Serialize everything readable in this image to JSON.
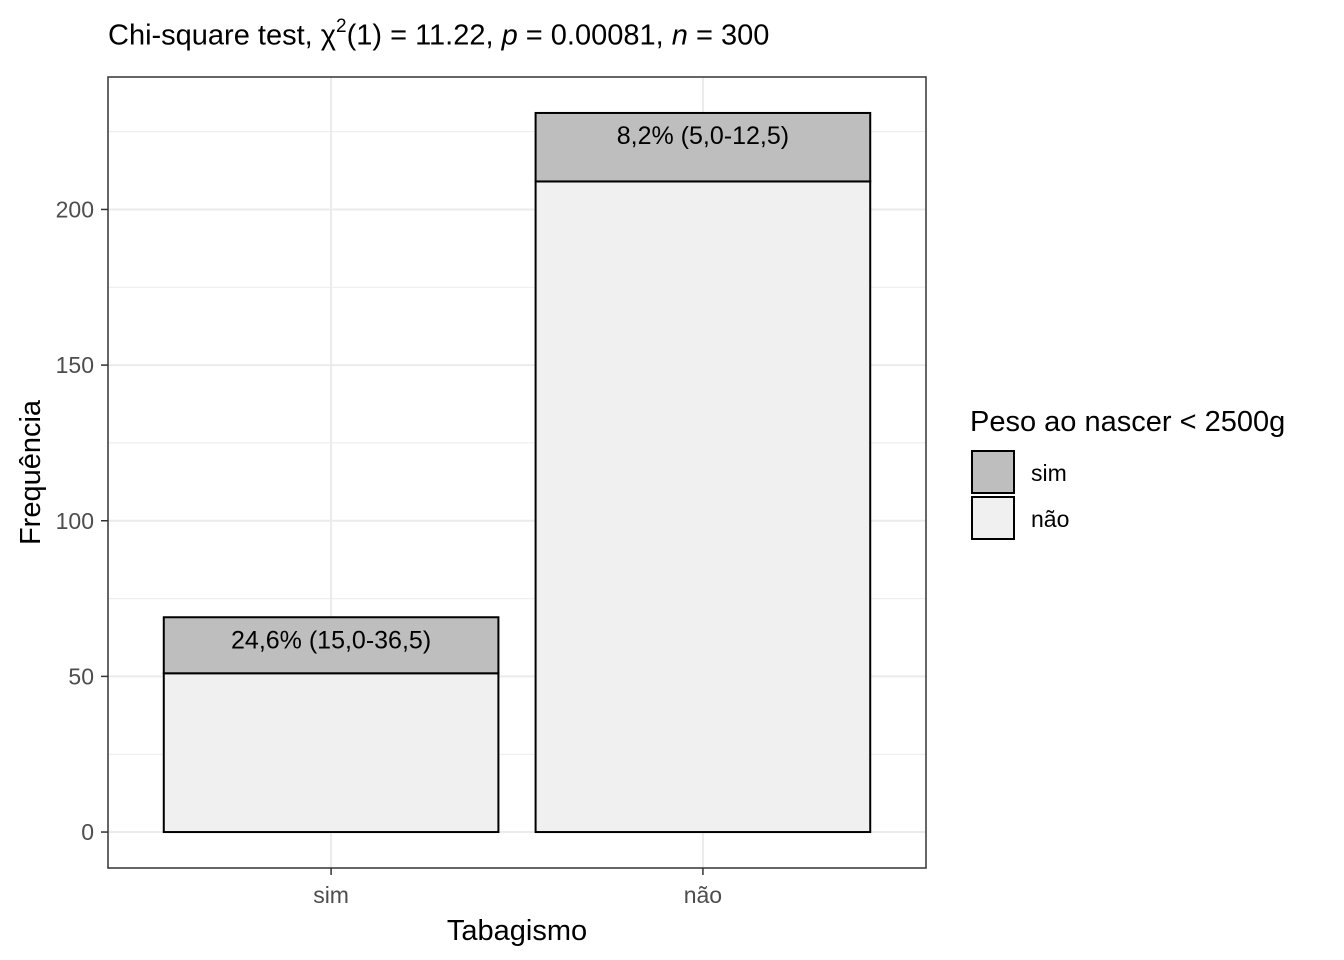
{
  "title": {
    "prefix": "Chi-square test, ",
    "symbol": "χ",
    "sup": "2",
    "df": "(1) = 11.22, ",
    "p_label": "p",
    "p_value": " = 0.00081, ",
    "n_label": "n",
    "n_value": " = 300"
  },
  "chart_data": {
    "type": "bar",
    "stacked": true,
    "categories": [
      "sim",
      "não"
    ],
    "series": [
      {
        "name": "não",
        "values": [
          51,
          209
        ],
        "color": "#f0f0f0"
      },
      {
        "name": "sim",
        "values": [
          18,
          22
        ],
        "color": "#bebebe"
      }
    ],
    "annotations": [
      "24,6% (15,0-36,5)",
      "8,2% (5,0-12,5)"
    ],
    "xlabel": "Tabagismo",
    "ylabel": "Frequência",
    "yticks": [
      0,
      50,
      100,
      150,
      200
    ],
    "ylim": [
      -11.55,
      242.55
    ],
    "grid": true,
    "legend": {
      "title": "Peso ao nascer < 2500g",
      "position": "right",
      "items": [
        {
          "label": "sim",
          "color": "#bebebe"
        },
        {
          "label": "não",
          "color": "#f0f0f0"
        }
      ]
    }
  }
}
